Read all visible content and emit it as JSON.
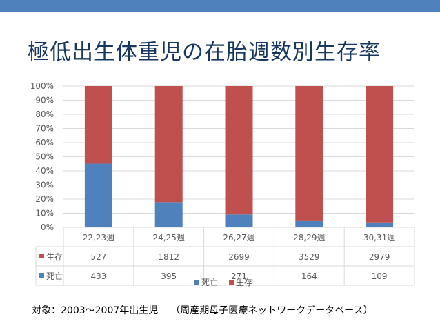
{
  "header": {
    "title": "極低出生体重児の在胎週数別生存率"
  },
  "chart_data": {
    "type": "bar",
    "stacked": "percent",
    "title": "",
    "xlabel": "",
    "ylabel": "",
    "ylim": [
      0,
      100
    ],
    "y_ticks": [
      "0%",
      "10%",
      "20%",
      "30%",
      "40%",
      "50%",
      "60%",
      "70%",
      "80%",
      "90%",
      "100%"
    ],
    "categories": [
      "22,23週",
      "24,25週",
      "26,27週",
      "28,29週",
      "30,31週"
    ],
    "series": [
      {
        "name": "死亡",
        "color": "#4f81bd",
        "values": [
          433,
          395,
          271,
          164,
          109
        ]
      },
      {
        "name": "生存",
        "color": "#c0504d",
        "values": [
          527,
          1812,
          2699,
          3529,
          2979
        ]
      }
    ],
    "table_rows": [
      {
        "name": "生存",
        "values": [
          "527",
          "1812",
          "2699",
          "3529",
          "2979"
        ]
      },
      {
        "name": "死亡",
        "values": [
          "433",
          "395",
          "271",
          "164",
          "109"
        ]
      }
    ],
    "legend": {
      "position": "bottom",
      "entries": [
        "死亡",
        "生存"
      ]
    },
    "grid": true
  },
  "footnote": {
    "subject": "対象：2003～2007年出生児",
    "source": "（周産期母子医療ネットワークデータベース）"
  }
}
